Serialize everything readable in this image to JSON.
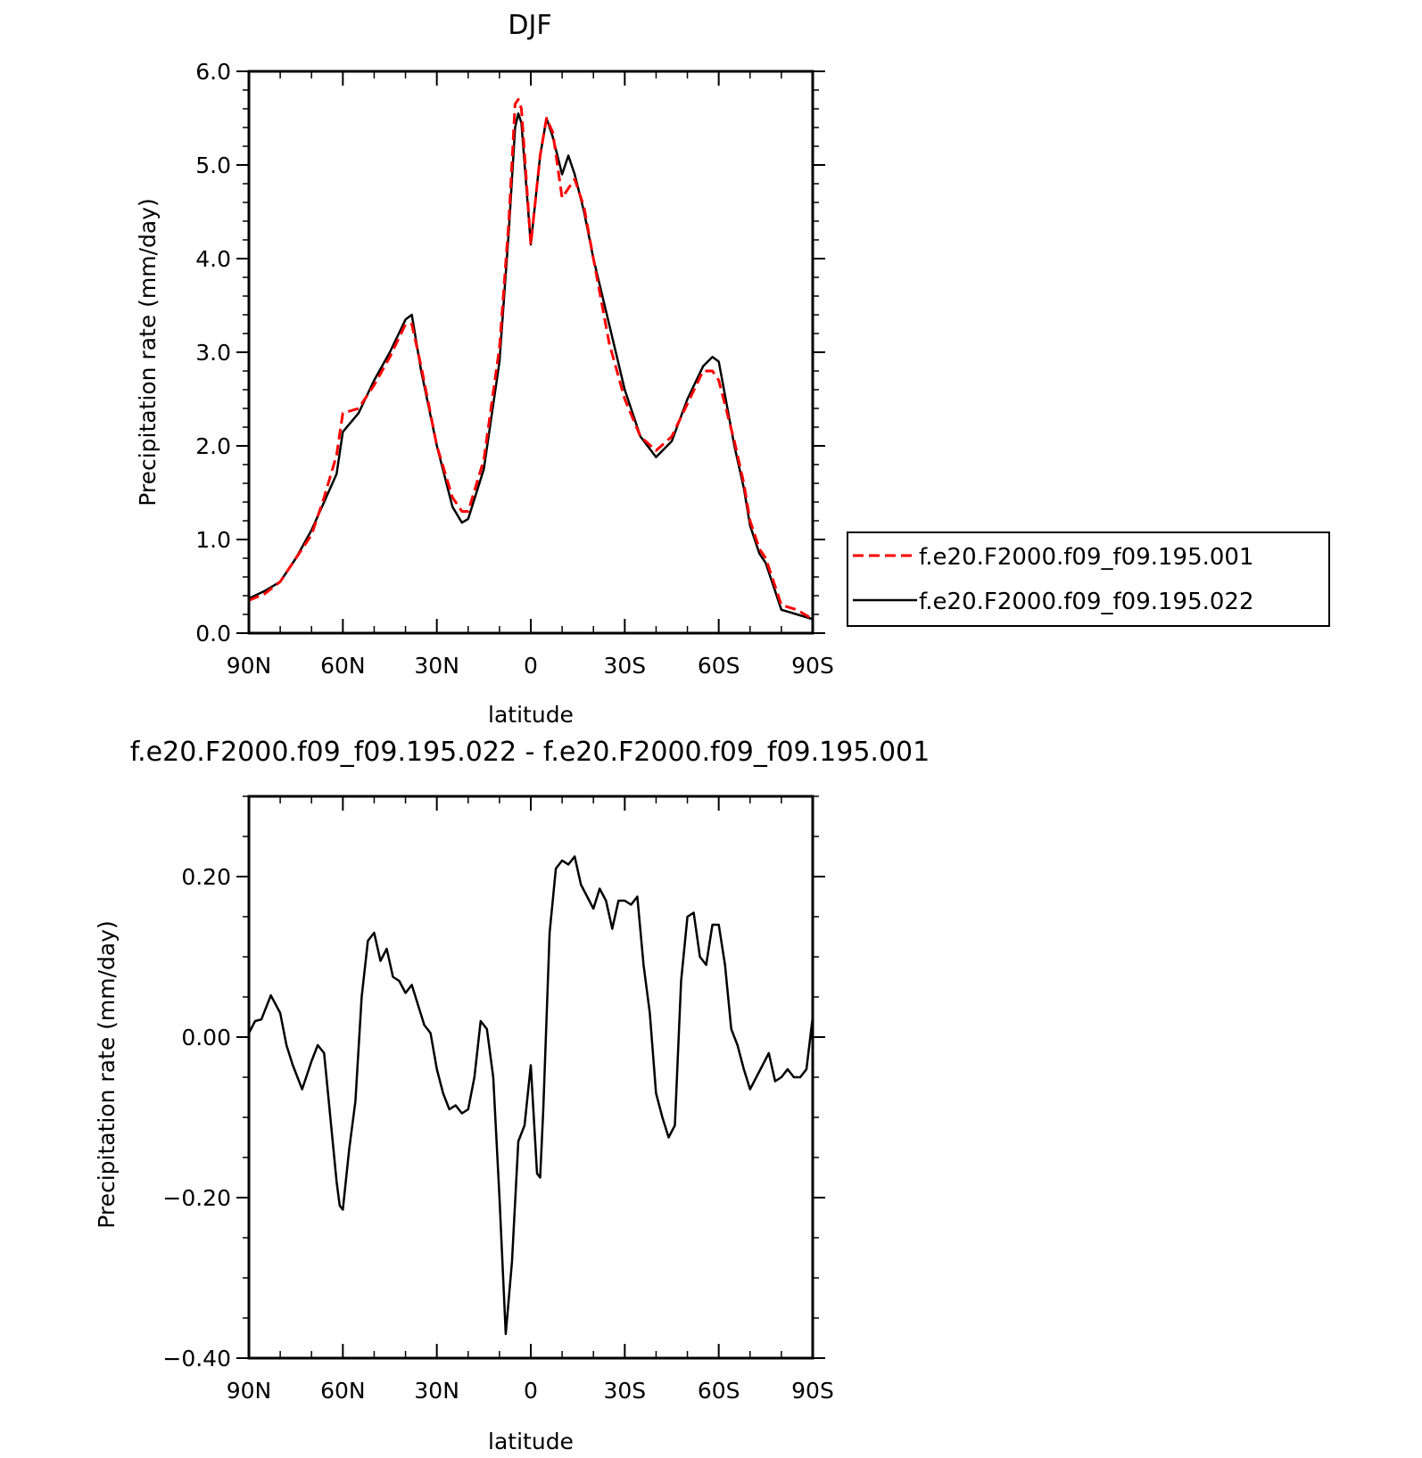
{
  "chart_data": [
    {
      "type": "line",
      "title": "DJF",
      "xlabel": "latitude",
      "ylabel": "Precipitation rate (mm/day)",
      "x_ticks": [
        90,
        60,
        30,
        0,
        -30,
        -60,
        -90
      ],
      "x_tick_labels": [
        "90N",
        "60N",
        "30N",
        "0",
        "30S",
        "60S",
        "90S"
      ],
      "xlim": [
        90,
        -90
      ],
      "y_ticks": [
        0.0,
        1.0,
        2.0,
        3.0,
        4.0,
        5.0,
        6.0
      ],
      "y_tick_labels": [
        "0.0",
        "1.0",
        "2.0",
        "3.0",
        "4.0",
        "5.0",
        "6.0"
      ],
      "ylim": [
        0,
        6.0
      ],
      "legend_position": "right",
      "series": [
        {
          "name": "f.e20.F2000.f09_f09.195.001",
          "color": "#ff0000",
          "dash": "dashed",
          "x": [
            90,
            85,
            80,
            75,
            70,
            66,
            62,
            60,
            55,
            50,
            45,
            40,
            38,
            35,
            30,
            25,
            22,
            20,
            15,
            10,
            7,
            5,
            4,
            3,
            0,
            -3,
            -5,
            -7,
            -10,
            -12,
            -14,
            -17,
            -20,
            -25,
            -30,
            -35,
            -40,
            -45,
            -50,
            -55,
            -58,
            -60,
            -65,
            -68,
            -70,
            -73,
            -75,
            -78,
            -80,
            -85,
            -90
          ],
          "y": [
            0.35,
            0.42,
            0.55,
            0.8,
            1.05,
            1.45,
            1.9,
            2.35,
            2.4,
            2.65,
            2.95,
            3.3,
            3.3,
            2.85,
            2.0,
            1.45,
            1.3,
            1.3,
            1.85,
            3.05,
            4.4,
            5.65,
            5.7,
            5.6,
            4.15,
            5.1,
            5.5,
            5.35,
            4.65,
            4.75,
            4.85,
            4.55,
            4.0,
            3.1,
            2.5,
            2.1,
            1.95,
            2.1,
            2.45,
            2.8,
            2.8,
            2.7,
            2.05,
            1.6,
            1.2,
            0.9,
            0.8,
            0.5,
            0.3,
            0.25,
            0.15
          ]
        },
        {
          "name": "f.e20.F2000.f09_f09.195.022",
          "color": "#000000",
          "dash": "solid",
          "x": [
            90,
            85,
            80,
            75,
            70,
            66,
            62,
            60,
            55,
            50,
            45,
            40,
            38,
            35,
            30,
            25,
            22,
            20,
            15,
            10,
            7,
            5,
            4,
            3,
            0,
            -3,
            -5,
            -7,
            -10,
            -12,
            -14,
            -17,
            -20,
            -25,
            -30,
            -35,
            -40,
            -45,
            -50,
            -55,
            -58,
            -60,
            -65,
            -68,
            -70,
            -73,
            -75,
            -78,
            -80,
            -85,
            -90
          ],
          "y": [
            0.37,
            0.45,
            0.55,
            0.8,
            1.1,
            1.4,
            1.7,
            2.15,
            2.35,
            2.7,
            3.0,
            3.35,
            3.4,
            2.8,
            2.0,
            1.35,
            1.18,
            1.22,
            1.75,
            2.9,
            4.3,
            5.4,
            5.55,
            5.45,
            4.15,
            5.1,
            5.5,
            5.3,
            4.9,
            5.1,
            4.9,
            4.5,
            4.0,
            3.3,
            2.6,
            2.1,
            1.88,
            2.05,
            2.5,
            2.85,
            2.95,
            2.9,
            2.0,
            1.55,
            1.15,
            0.85,
            0.75,
            0.45,
            0.25,
            0.2,
            0.15
          ]
        }
      ]
    },
    {
      "type": "line",
      "title": "f.e20.F2000.f09_f09.195.022 - f.e20.F2000.f09_f09.195.001",
      "xlabel": "latitude",
      "ylabel": "Precipitation rate (mm/day)",
      "x_ticks": [
        90,
        60,
        30,
        0,
        -30,
        -60,
        -90
      ],
      "x_tick_labels": [
        "90N",
        "60N",
        "30N",
        "0",
        "30S",
        "60S",
        "90S"
      ],
      "xlim": [
        90,
        -90
      ],
      "y_ticks": [
        -0.4,
        -0.2,
        0.0,
        0.2
      ],
      "y_tick_labels": [
        "−0.40",
        "−0.20",
        "0.00",
        "0.20"
      ],
      "ylim": [
        -0.4,
        0.3
      ],
      "series": [
        {
          "color": "#000000",
          "dash": "solid",
          "x": [
            90,
            88,
            86,
            83,
            80,
            78,
            76,
            73,
            70,
            68,
            66,
            64,
            62,
            61,
            60,
            58,
            56,
            54,
            52,
            50,
            48,
            46,
            44,
            42,
            40,
            38,
            36,
            34,
            32,
            30,
            28,
            26,
            24,
            22,
            20,
            18,
            16,
            14,
            12,
            10,
            8,
            6,
            4,
            2,
            0,
            -2,
            -3,
            -4,
            -6,
            -8,
            -10,
            -12,
            -14,
            -16,
            -18,
            -20,
            -22,
            -24,
            -26,
            -28,
            -30,
            -32,
            -34,
            -36,
            -38,
            -40,
            -42,
            -44,
            -46,
            -48,
            -50,
            -52,
            -54,
            -56,
            -58,
            -60,
            -62,
            -64,
            -66,
            -68,
            -70,
            -72,
            -74,
            -76,
            -78,
            -80,
            -82,
            -84,
            -86,
            -88,
            -90
          ],
          "y": [
            0.005,
            0.02,
            0.022,
            0.052,
            0.03,
            -0.01,
            -0.035,
            -0.065,
            -0.03,
            -0.01,
            -0.02,
            -0.1,
            -0.18,
            -0.21,
            -0.215,
            -0.14,
            -0.08,
            0.05,
            0.12,
            0.13,
            0.095,
            0.11,
            0.075,
            0.07,
            0.055,
            0.065,
            0.04,
            0.015,
            0.005,
            -0.04,
            -0.07,
            -0.09,
            -0.085,
            -0.095,
            -0.09,
            -0.05,
            0.02,
            0.01,
            -0.05,
            -0.2,
            -0.37,
            -0.28,
            -0.13,
            -0.11,
            -0.035,
            -0.17,
            -0.175,
            -0.09,
            0.13,
            0.21,
            0.22,
            0.215,
            0.225,
            0.19,
            0.175,
            0.16,
            0.185,
            0.17,
            0.135,
            0.17,
            0.17,
            0.165,
            0.175,
            0.09,
            0.03,
            -0.07,
            -0.1,
            -0.125,
            -0.11,
            0.07,
            0.15,
            0.155,
            0.1,
            0.09,
            0.14,
            0.14,
            0.09,
            0.01,
            -0.01,
            -0.04,
            -0.065,
            -0.05,
            -0.035,
            -0.02,
            -0.055,
            -0.05,
            -0.04,
            -0.05,
            -0.05,
            -0.04,
            0.025
          ]
        }
      ]
    }
  ]
}
